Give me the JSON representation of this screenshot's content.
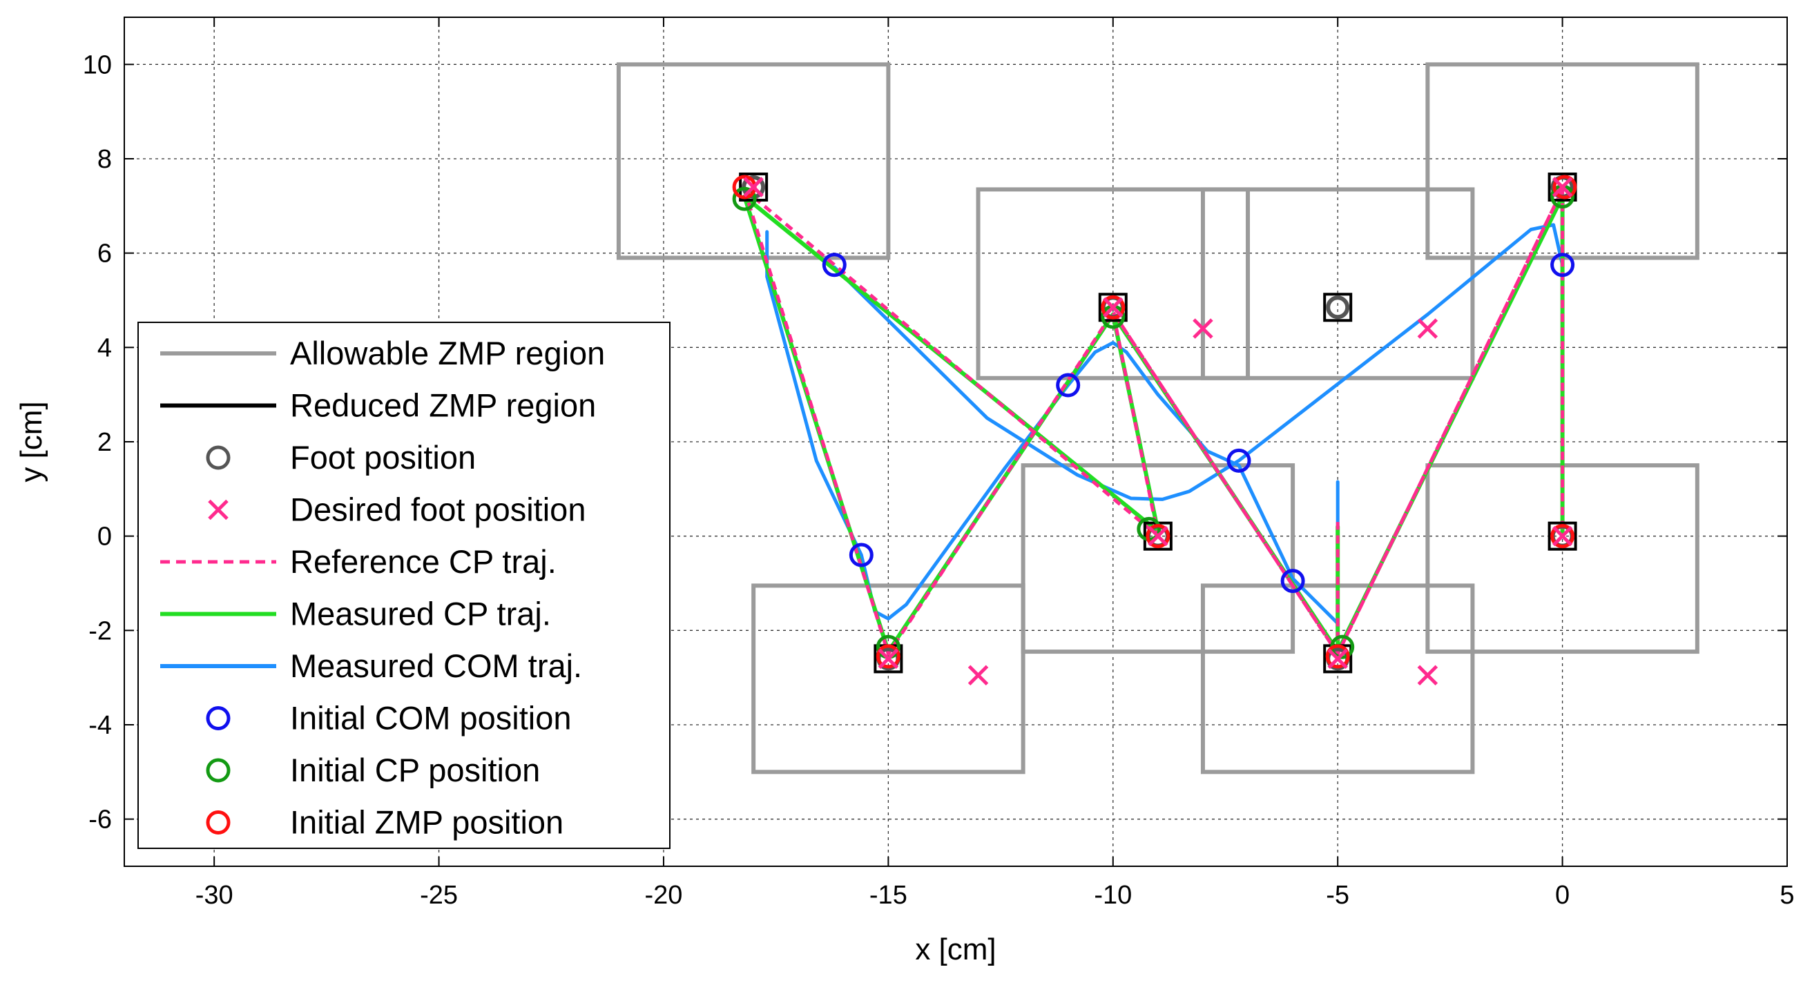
{
  "chart_data": {
    "type": "line",
    "xlabel": "x [cm]",
    "ylabel": "y [cm]",
    "xlim": [
      -32,
      5
    ],
    "ylim": [
      -7,
      11
    ],
    "xticks": [
      -30,
      -25,
      -20,
      -15,
      -10,
      -5,
      0,
      5
    ],
    "yticks": [
      -6,
      -4,
      -2,
      0,
      2,
      4,
      6,
      8,
      10
    ],
    "grid": true,
    "legend_position": "left",
    "colors": {
      "allowable": "#9b9b9b",
      "reduced": "#000000",
      "foot": "#555555",
      "desired": "#ff2a8e",
      "ref_cp": "#ff2a8e",
      "meas_cp": "#22dd22",
      "meas_com": "#1e8fff",
      "init_com": "#1010ee",
      "init_cp": "#139a13",
      "init_zmp": "#ff1010"
    },
    "legend": [
      {
        "key": "allowable",
        "label": "Allowable ZMP region",
        "marker": "line"
      },
      {
        "key": "reduced",
        "label": "Reduced ZMP region",
        "marker": "line"
      },
      {
        "key": "foot",
        "label": "Foot position",
        "marker": "circle"
      },
      {
        "key": "desired",
        "label": "Desired foot position",
        "marker": "cross"
      },
      {
        "key": "ref_cp",
        "label": "Reference CP traj.",
        "marker": "dash"
      },
      {
        "key": "meas_cp",
        "label": "Measured CP traj.",
        "marker": "line"
      },
      {
        "key": "meas_com",
        "label": "Measured COM traj.",
        "marker": "line"
      },
      {
        "key": "init_com",
        "label": "Initial COM position",
        "marker": "circle"
      },
      {
        "key": "init_cp",
        "label": "Initial CP position",
        "marker": "circle"
      },
      {
        "key": "init_zmp",
        "label": "Initial ZMP position",
        "marker": "circle"
      }
    ],
    "allowable_regions": [
      {
        "x0": -21,
        "x1": -15,
        "y0": 5.9,
        "y1": 10
      },
      {
        "x0": -13,
        "x1": -7,
        "y0": 3.35,
        "y1": 7.35
      },
      {
        "x0": -8,
        "x1": -2,
        "y0": 3.35,
        "y1": 7.35
      },
      {
        "x0": -3,
        "x1": 3,
        "y0": 5.9,
        "y1": 10
      },
      {
        "x0": -12,
        "x1": -6,
        "y0": -2.45,
        "y1": 1.5
      },
      {
        "x0": -3,
        "x1": 3,
        "y0": -2.45,
        "y1": 1.5
      },
      {
        "x0": -18,
        "x1": -12,
        "y0": -5,
        "y1": -1.05
      },
      {
        "x0": -8,
        "x1": -2,
        "y0": -5,
        "y1": -1.05
      }
    ],
    "foot_positions": [
      {
        "x": -18,
        "y": 7.4
      },
      {
        "x": -10,
        "y": 4.85
      },
      {
        "x": -5,
        "y": 4.85
      },
      {
        "x": 0,
        "y": 7.4
      },
      {
        "x": -9,
        "y": 0
      },
      {
        "x": 0,
        "y": 0
      },
      {
        "x": -15,
        "y": -2.6
      },
      {
        "x": -5,
        "y": -2.6
      }
    ],
    "desired_foot_positions": [
      {
        "x": -18,
        "y": 7.4
      },
      {
        "x": -10,
        "y": 4.85
      },
      {
        "x": -8,
        "y": 4.4
      },
      {
        "x": -3,
        "y": 4.4
      },
      {
        "x": 0,
        "y": 7.4
      },
      {
        "x": -9,
        "y": 0
      },
      {
        "x": 0,
        "y": 0
      },
      {
        "x": -15,
        "y": -2.6
      },
      {
        "x": -13,
        "y": -2.95
      },
      {
        "x": -5,
        "y": -2.6
      },
      {
        "x": -3,
        "y": -2.95
      }
    ],
    "series": [
      {
        "name": "Reference CP traj.",
        "key": "ref_cp",
        "segments": [
          {
            "x": [
              -18.2,
              -15,
              -10,
              -9,
              -18.2
            ],
            "y": [
              7.35,
              -2.5,
              4.75,
              0,
              7.35
            ]
          },
          {
            "x": [
              -5,
              -10,
              -5,
              0,
              -5
            ],
            "y": [
              -2.5,
              4.75,
              -2.5,
              7.35,
              -2.5
            ]
          },
          {
            "x": [
              -5,
              -5
            ],
            "y": [
              -2.5,
              0.3
            ]
          },
          {
            "x": [
              0,
              0
            ],
            "y": [
              7.35,
              0
            ]
          }
        ]
      },
      {
        "name": "Measured CP traj.",
        "key": "meas_cp",
        "segments": [
          {
            "x": [
              -18.2,
              -15,
              -10,
              -9,
              -18.2
            ],
            "y": [
              7.2,
              -2.45,
              4.7,
              0.1,
              7.2
            ]
          },
          {
            "x": [
              -5,
              -10,
              -5,
              0,
              -5
            ],
            "y": [
              -2.45,
              4.7,
              -2.45,
              7.2,
              -2.45
            ]
          },
          {
            "x": [
              -5,
              -5
            ],
            "y": [
              -2.45,
              0.2
            ]
          },
          {
            "x": [
              0,
              0
            ],
            "y": [
              7.2,
              0
            ]
          }
        ]
      },
      {
        "name": "Measured COM traj.",
        "key": "meas_com",
        "segments": [
          {
            "x": [
              -17.7,
              -17.7,
              -16.6,
              -15.6,
              -15.3,
              -15.0,
              -14.6,
              -12.4,
              -11.0,
              -10.4,
              -10.0,
              -9.7,
              -9.0,
              -7.9,
              -7.2,
              -6.0,
              -5.0,
              -5.0
            ],
            "y": [
              6.45,
              5.5,
              1.6,
              -0.4,
              -1.6,
              -1.75,
              -1.45,
              1.45,
              3.2,
              3.9,
              4.1,
              3.9,
              3.0,
              1.8,
              1.5,
              -0.9,
              -1.85,
              1.15
            ]
          },
          {
            "x": [
              -16.2,
              -12.8,
              -10.8,
              -9.6,
              -8.9,
              -8.3,
              -7.2,
              -3.0,
              -0.7,
              -0.2,
              0.0,
              0.0
            ],
            "y": [
              5.7,
              2.5,
              1.3,
              0.8,
              0.78,
              0.95,
              1.6,
              4.7,
              6.5,
              6.6,
              5.75,
              0.1
            ]
          }
        ]
      }
    ],
    "initial_com_positions": [
      {
        "x": -16.2,
        "y": 5.75
      },
      {
        "x": -11.0,
        "y": 3.2
      },
      {
        "x": -7.2,
        "y": 1.6
      },
      {
        "x": 0.0,
        "y": 5.75
      },
      {
        "x": -15.6,
        "y": -0.4
      },
      {
        "x": -6.0,
        "y": -0.95
      }
    ],
    "initial_cp_positions": [
      {
        "x": -18.2,
        "y": 7.15
      },
      {
        "x": -10.0,
        "y": 4.65
      },
      {
        "x": -9.2,
        "y": 0.15
      },
      {
        "x": 0.0,
        "y": 7.2
      },
      {
        "x": -15.0,
        "y": -2.35
      },
      {
        "x": -4.9,
        "y": -2.35
      }
    ],
    "initial_zmp_positions": [
      {
        "x": -18.2,
        "y": 7.4
      },
      {
        "x": -10.0,
        "y": 4.85
      },
      {
        "x": -9.0,
        "y": 0
      },
      {
        "x": 0.0,
        "y": 0
      },
      {
        "x": 0.05,
        "y": 7.4
      },
      {
        "x": -15.0,
        "y": -2.55
      },
      {
        "x": -5.0,
        "y": -2.55
      }
    ]
  }
}
